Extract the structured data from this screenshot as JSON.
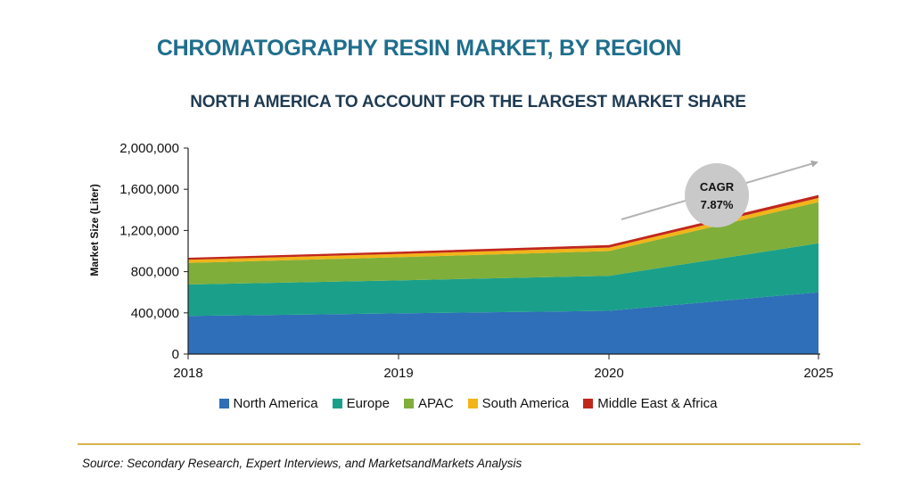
{
  "title": "CHROMATOGRAPHY RESIN MARKET, BY REGION",
  "subtitle": "NORTH AMERICA TO ACCOUNT FOR THE LARGEST MARKET SHARE",
  "source": "Source: Secondary Research, Expert Interviews, and MarketsandMarkets Analysis",
  "cagr": {
    "label": "CAGR",
    "value": "7.87%"
  },
  "chart_data": {
    "type": "area",
    "stacked": true,
    "x": [
      "2018",
      "2019",
      "2020",
      "2025"
    ],
    "ylabel": "Market Size (Liter)",
    "xlabel": "",
    "ylim": [
      0,
      2000000
    ],
    "yticks": [
      "0",
      "400,000",
      "800,000",
      "1,200,000",
      "1,600,000",
      "2,000,000"
    ],
    "grid": false,
    "legend_position": "bottom",
    "series": [
      {
        "name": "North America",
        "color": "#2f6eb8",
        "values": [
          370000,
          395000,
          420000,
          600000
        ]
      },
      {
        "name": "Europe",
        "color": "#1aa08a",
        "values": [
          305000,
          320000,
          340000,
          475000
        ]
      },
      {
        "name": "APAC",
        "color": "#7fae3a",
        "values": [
          210000,
          225000,
          240000,
          400000
        ]
      },
      {
        "name": "South America",
        "color": "#f2b418",
        "values": [
          30000,
          32000,
          34000,
          40000
        ]
      },
      {
        "name": "Middle East & Africa",
        "color": "#c0271c",
        "values": [
          20000,
          22000,
          24000,
          30000
        ]
      }
    ]
  }
}
